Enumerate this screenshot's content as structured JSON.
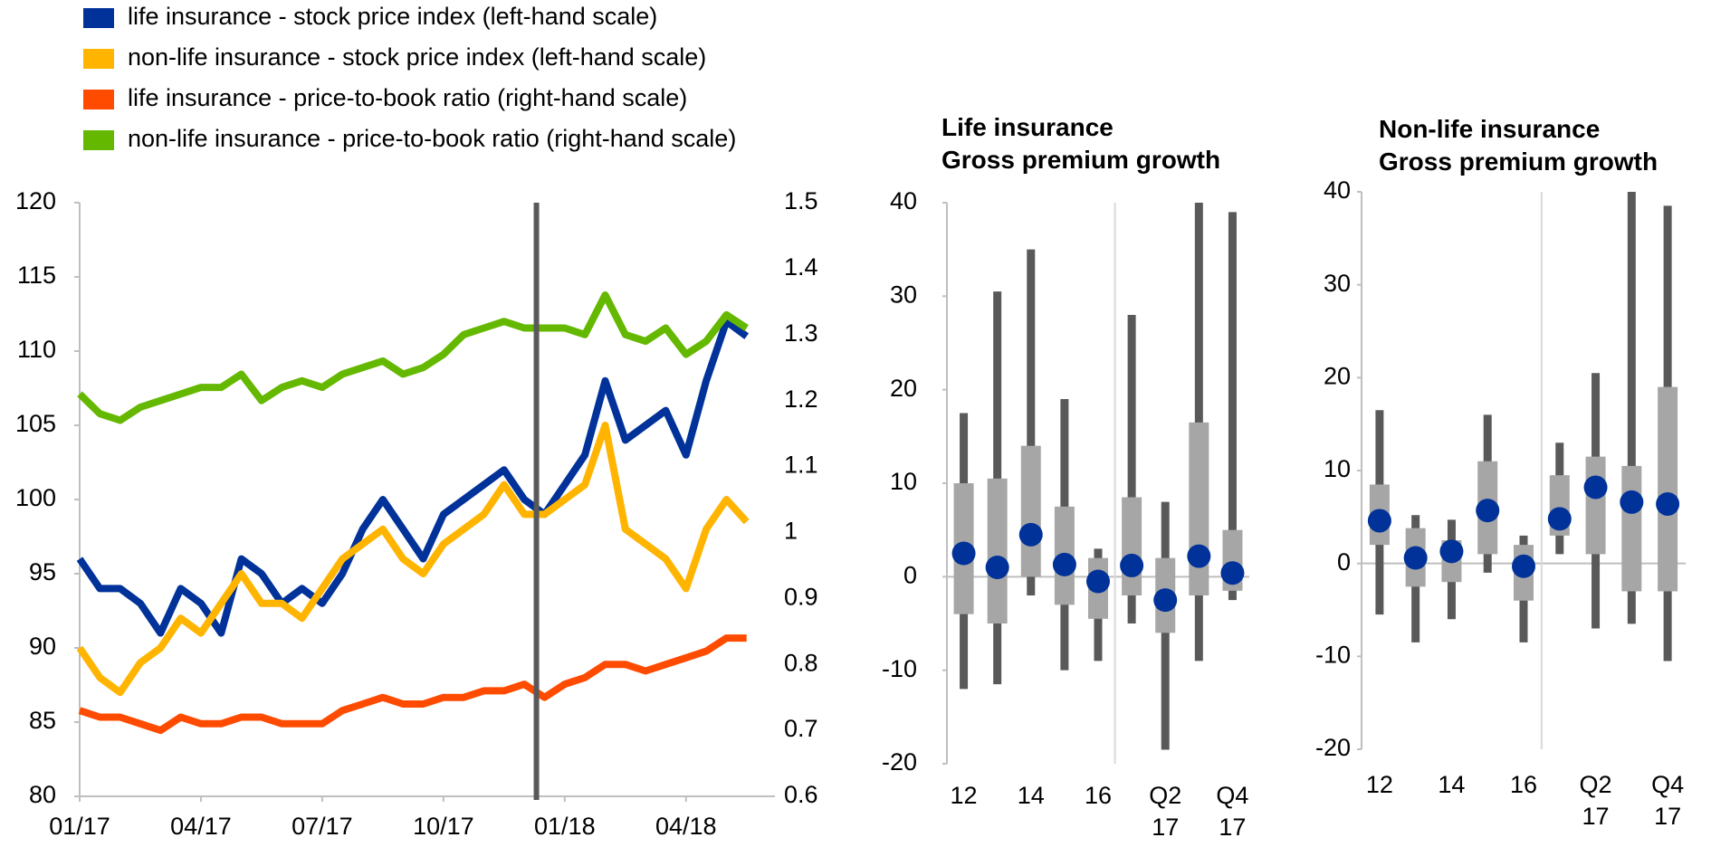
{
  "chart_data": [
    {
      "type": "line",
      "x": [
        0,
        0.5,
        1,
        1.5,
        2,
        2.5,
        3,
        3.5,
        4,
        4.5,
        5,
        5.5,
        6,
        6.5,
        7,
        7.5,
        8,
        8.5,
        9,
        9.5,
        10,
        10.5,
        11,
        11.5,
        12,
        12.5,
        13,
        13.5,
        14,
        14.5,
        15,
        15.5,
        16,
        16.5
      ],
      "xlim": [
        0,
        17.2
      ],
      "xticks": [
        {
          "value": 0,
          "label": "01/17"
        },
        {
          "value": 3,
          "label": "04/17"
        },
        {
          "value": 6,
          "label": "07/17"
        },
        {
          "value": 9,
          "label": "10/17"
        },
        {
          "value": 12,
          "label": "01/18"
        },
        {
          "value": 15,
          "label": "04/18"
        }
      ],
      "ylim": [
        80,
        120
      ],
      "yticks": [
        80,
        85,
        90,
        95,
        100,
        105,
        110,
        115,
        120
      ],
      "y2lim": [
        0.6,
        1.5
      ],
      "y2ticks": [
        0.6,
        0.7,
        0.8,
        0.9,
        1,
        1.1,
        1.2,
        1.3,
        1.4,
        1.5
      ],
      "vertical_line": 11.3,
      "series": [
        {
          "name": "life insurance - stock price index (left-hand scale)",
          "color": "#003299",
          "values": [
            96,
            94,
            94,
            93,
            91,
            94,
            93,
            91,
            96,
            95,
            93,
            94,
            93,
            95,
            98,
            100,
            98,
            96,
            99,
            100,
            101,
            102,
            100,
            99,
            101,
            103,
            108,
            104,
            105,
            106,
            103,
            108,
            112,
            111
          ]
        },
        {
          "name": "non-life insurance - stock price index (left-hand scale)",
          "color": "#ffb400",
          "values": [
            90,
            88,
            87,
            89,
            90,
            92,
            91,
            93,
            95,
            93,
            93,
            92,
            94,
            96,
            97,
            98,
            96,
            95,
            97,
            98,
            99,
            101,
            99,
            99,
            100,
            101,
            105,
            98,
            97,
            96,
            94,
            98,
            100,
            98.5
          ]
        },
        {
          "name": "life insurance - price-to-book ratio (right-hand scale)",
          "color": "#ff4b00",
          "axis": "y2",
          "values": [
            0.73,
            0.72,
            0.72,
            0.71,
            0.7,
            0.72,
            0.71,
            0.71,
            0.72,
            0.72,
            0.71,
            0.71,
            0.71,
            0.73,
            0.74,
            0.75,
            0.74,
            0.74,
            0.75,
            0.75,
            0.76,
            0.76,
            0.77,
            0.75,
            0.77,
            0.78,
            0.8,
            0.8,
            0.79,
            0.8,
            0.81,
            0.82,
            0.84,
            0.84
          ]
        },
        {
          "name": "non-life insurance - price-to-book ratio (right-hand scale)",
          "color": "#65b800",
          "axis": "y2",
          "values": [
            1.21,
            1.18,
            1.17,
            1.19,
            1.2,
            1.21,
            1.22,
            1.22,
            1.24,
            1.2,
            1.22,
            1.23,
            1.22,
            1.24,
            1.25,
            1.26,
            1.24,
            1.25,
            1.27,
            1.3,
            1.31,
            1.32,
            1.31,
            1.31,
            1.31,
            1.3,
            1.36,
            1.3,
            1.29,
            1.31,
            1.27,
            1.29,
            1.33,
            1.31
          ]
        }
      ]
    },
    {
      "type": "box",
      "title": "Life insurance\nGross premium growth",
      "categories": [
        "12",
        null,
        "14",
        null,
        "16",
        null,
        "Q2\n17",
        null,
        "Q4\n17"
      ],
      "ylim": [
        -20,
        40
      ],
      "yticks": [
        -20,
        -10,
        0,
        10,
        20,
        30,
        40
      ],
      "whisker_color": "#595959",
      "box_color": "#a6a6a6",
      "color": "#003299",
      "min": [
        -12,
        -11.5,
        -2,
        -10,
        -9,
        -5,
        -18.5,
        -9,
        -2.5
      ],
      "p25": [
        -4,
        -5,
        0,
        -3,
        -4.5,
        -2,
        -6,
        -2,
        -1.5
      ],
      "median": [
        2.5,
        1,
        4.5,
        1.3,
        -0.5,
        1.2,
        -2.5,
        2.2,
        0.4
      ],
      "p75": [
        10,
        10.5,
        14,
        7.5,
        2,
        8.5,
        2,
        16.5,
        5
      ],
      "max": [
        17.5,
        30.5,
        35,
        19,
        3,
        28,
        8,
        40,
        39
      ]
    },
    {
      "type": "box",
      "title": "Non-life insurance\nGross premium growth",
      "categories": [
        "12",
        null,
        "14",
        null,
        "16",
        null,
        "Q2\n17",
        null,
        "Q4\n17"
      ],
      "ylim": [
        -20,
        40
      ],
      "yticks": [
        -20,
        -10,
        0,
        10,
        20,
        30,
        40
      ],
      "whisker_color": "#595959",
      "box_color": "#a6a6a6",
      "color": "#003299",
      "min": [
        -5.5,
        -8.5,
        -6,
        -1,
        -8.5,
        1,
        -7,
        -6.5,
        -10.5
      ],
      "p25": [
        2,
        -2.5,
        -2,
        1,
        -4,
        3,
        1,
        -3,
        -3
      ],
      "median": [
        4.6,
        0.6,
        1.3,
        5.7,
        -0.3,
        4.8,
        8.2,
        6.6,
        6.4
      ],
      "p75": [
        8.5,
        3.8,
        2.5,
        11,
        2,
        9.5,
        11.5,
        10.5,
        19
      ],
      "max": [
        16.5,
        5.2,
        4.7,
        16,
        3,
        13,
        20.5,
        40,
        38.5
      ]
    }
  ]
}
